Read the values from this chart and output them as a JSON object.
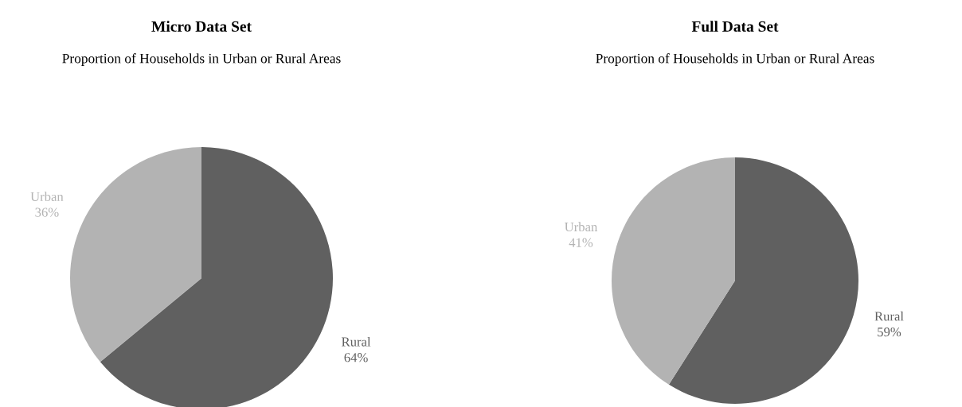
{
  "chart_data": [
    {
      "type": "pie",
      "title": "Micro Data Set",
      "subtitle": "Proportion of Households in Urban or Rural Areas",
      "categories": [
        "Rural",
        "Urban"
      ],
      "values": [
        64,
        36
      ],
      "colors": [
        "#606060",
        "#b3b3b3"
      ],
      "value_labels": [
        "64%",
        "36%"
      ]
    },
    {
      "type": "pie",
      "title": "Full Data Set",
      "subtitle": "Proportion of Households in Urban or Rural Areas",
      "categories": [
        "Rural",
        "Urban"
      ],
      "values": [
        59,
        41
      ],
      "colors": [
        "#606060",
        "#b3b3b3"
      ],
      "value_labels": [
        "59%",
        "41%"
      ]
    }
  ]
}
